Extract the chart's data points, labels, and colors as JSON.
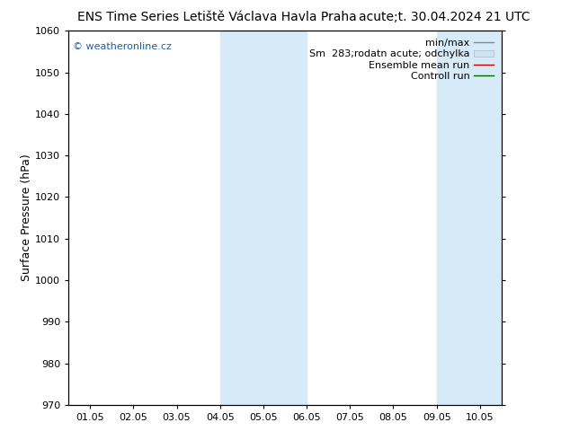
{
  "title_left": "ENS Time Series Letiště Václava Havla Praha",
  "title_right": "acute;t. 30.04.2024 21 UTC",
  "ylabel": "Surface Pressure (hPa)",
  "ylim": [
    970,
    1060
  ],
  "yticks": [
    970,
    980,
    990,
    1000,
    1010,
    1020,
    1030,
    1040,
    1050,
    1060
  ],
  "x_tick_labels": [
    "01.05",
    "02.05",
    "03.05",
    "04.05",
    "05.05",
    "06.05",
    "07.05",
    "08.05",
    "09.05",
    "10.05"
  ],
  "x_tick_positions": [
    0,
    1,
    2,
    3,
    4,
    5,
    6,
    7,
    8,
    9
  ],
  "x_min": -0.5,
  "x_max": 9.5,
  "shaded_bands": [
    {
      "x_start": 3.0,
      "x_end": 4.0
    },
    {
      "x_start": 4.0,
      "x_end": 5.0
    },
    {
      "x_start": 8.0,
      "x_end": 9.0
    },
    {
      "x_start": 9.0,
      "x_end": 9.5
    }
  ],
  "band_color": "#d6eaf8",
  "background_color": "#ffffff",
  "plot_bg_color": "#ffffff",
  "watermark": "© weatheronline.cz",
  "watermark_color": "#1a5fa0",
  "title_fontsize": 10,
  "tick_fontsize": 8,
  "ylabel_fontsize": 9,
  "legend_fontsize": 8,
  "minmax_color": "#888888",
  "sm_band_color": "#d0e4f0",
  "ens_color": "#cc0000",
  "ctrl_color": "#006600"
}
